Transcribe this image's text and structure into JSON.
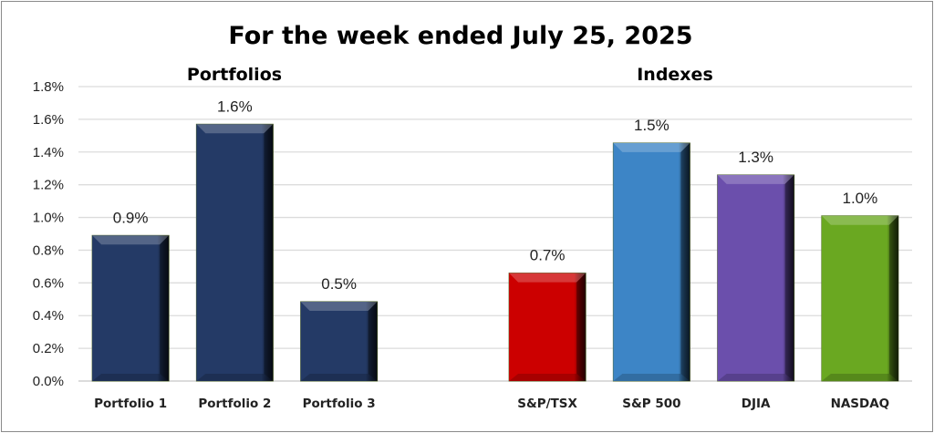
{
  "chart_data": {
    "type": "bar",
    "title": "For the week ended July 25, 2025",
    "groups": [
      {
        "label": "Portfolios",
        "categories": [
          "Portfolio 1",
          "Portfolio 2",
          "Portfolio 3"
        ]
      },
      {
        "label": "Indexes",
        "categories": [
          "S&P/TSX",
          "S&P 500",
          "DJIA",
          "NASDAQ"
        ]
      }
    ],
    "categories": [
      "Portfolio 1",
      "Portfolio 2",
      "Portfolio 3",
      "",
      "S&P/TSX",
      "S&P 500",
      "DJIA",
      "NASDAQ"
    ],
    "values": [
      0.89,
      1.57,
      0.485,
      null,
      0.66,
      1.455,
      1.26,
      1.01
    ],
    "data_labels": [
      "0.9%",
      "1.6%",
      "0.5%",
      "",
      "0.7%",
      "1.5%",
      "1.3%",
      "1.0%"
    ],
    "colors": [
      "#243a66",
      "#243a66",
      "#243a66",
      "",
      "#cc0000",
      "#3d85c6",
      "#6b4fac",
      "#6aa821"
    ],
    "ylim": [
      0,
      1.8
    ],
    "yticks": [
      "0.0%",
      "0.2%",
      "0.4%",
      "0.6%",
      "0.8%",
      "1.0%",
      "1.2%",
      "1.4%",
      "1.6%",
      "1.8%"
    ],
    "ytick_values": [
      0,
      0.2,
      0.4,
      0.6,
      0.8,
      1.0,
      1.2,
      1.4,
      1.6,
      1.8
    ],
    "xlabel": "",
    "ylabel": "",
    "grid": true,
    "legend": "none"
  }
}
